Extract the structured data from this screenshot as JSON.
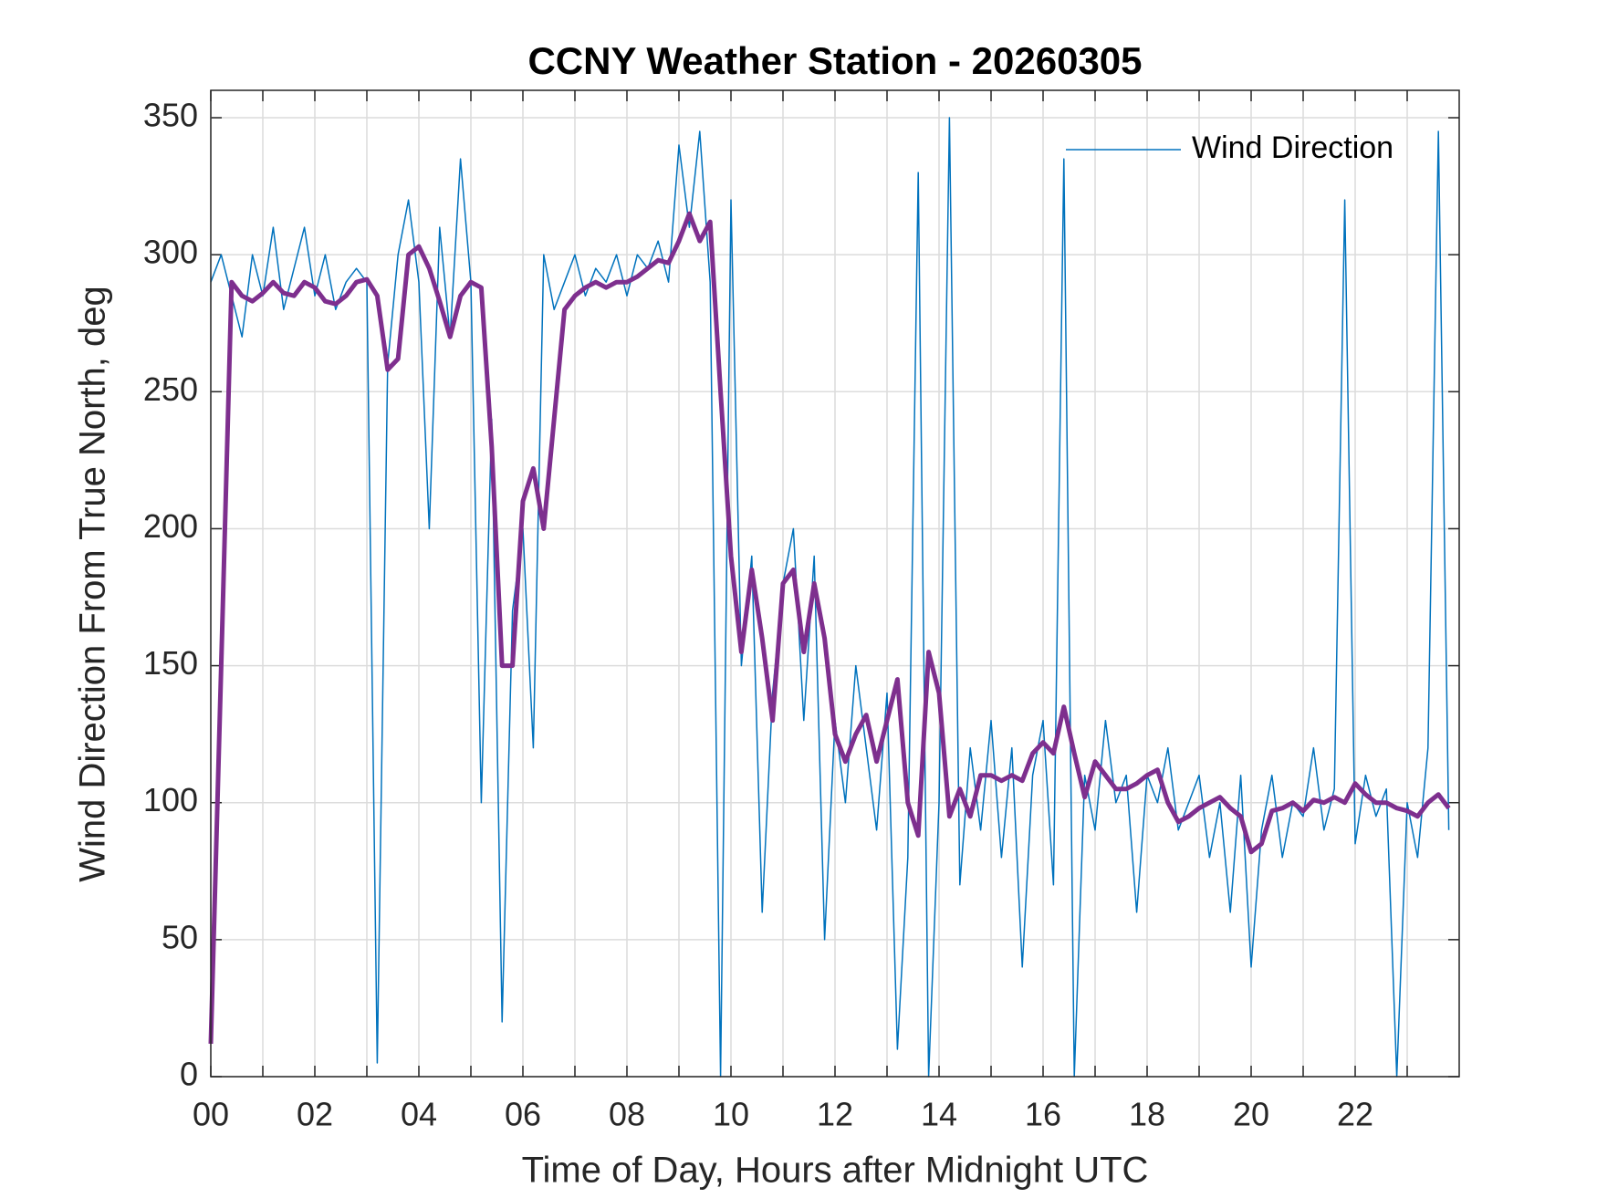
{
  "chart_data": {
    "type": "line",
    "title": "CCNY Weather Station - 20260305",
    "xlabel": "Time of Day, Hours after Midnight UTC",
    "ylabel": "Wind Direction From True North, deg",
    "x": [
      0,
      0.2,
      0.4,
      0.6,
      0.8,
      1,
      1.2,
      1.4,
      1.6,
      1.8,
      2,
      2.2,
      2.4,
      2.6,
      2.8,
      3,
      3.2,
      3.4,
      3.6,
      3.8,
      4,
      4.2,
      4.4,
      4.6,
      4.8,
      5,
      5.2,
      5.4,
      5.6,
      5.8,
      6,
      6.2,
      6.4,
      6.6,
      6.8,
      7,
      7.2,
      7.4,
      7.6,
      7.8,
      8,
      8.2,
      8.4,
      8.6,
      8.8,
      9,
      9.2,
      9.4,
      9.6,
      9.8,
      10,
      10.2,
      10.4,
      10.6,
      10.8,
      11,
      11.2,
      11.4,
      11.6,
      11.8,
      12,
      12.2,
      12.4,
      12.6,
      12.8,
      13,
      13.2,
      13.4,
      13.6,
      13.8,
      14,
      14.2,
      14.4,
      14.6,
      14.8,
      15,
      15.2,
      15.4,
      15.6,
      15.8,
      16,
      16.2,
      16.4,
      16.6,
      16.8,
      17,
      17.2,
      17.4,
      17.6,
      17.8,
      18,
      18.2,
      18.4,
      18.6,
      18.8,
      19,
      19.2,
      19.4,
      19.6,
      19.8,
      20,
      20.2,
      20.4,
      20.6,
      20.8,
      21,
      21.2,
      21.4,
      21.6,
      21.8,
      22,
      22.2,
      22.4,
      22.6,
      22.8,
      23,
      23.2,
      23.4,
      23.6,
      23.8
    ],
    "series": [
      {
        "name": "Wind Direction",
        "color": "#0072bd",
        "width": 1.5,
        "values": [
          290,
          300,
          285,
          270,
          300,
          285,
          310,
          280,
          295,
          310,
          285,
          300,
          280,
          290,
          295,
          290,
          5,
          260,
          300,
          320,
          290,
          200,
          310,
          270,
          335,
          290,
          100,
          240,
          20,
          170,
          200,
          120,
          300,
          280,
          290,
          300,
          285,
          295,
          290,
          300,
          285,
          300,
          295,
          305,
          290,
          340,
          310,
          345,
          290,
          0,
          320,
          150,
          190,
          60,
          140,
          180,
          200,
          130,
          190,
          50,
          130,
          100,
          150,
          120,
          90,
          140,
          10,
          80,
          330,
          0,
          100,
          350,
          70,
          120,
          90,
          130,
          80,
          120,
          40,
          110,
          130,
          70,
          335,
          0,
          110,
          90,
          130,
          100,
          110,
          60,
          110,
          100,
          120,
          90,
          100,
          110,
          80,
          100,
          60,
          110,
          40,
          90,
          110,
          80,
          100,
          95,
          120,
          90,
          105,
          320,
          85,
          110,
          95,
          105,
          0,
          100,
          80,
          120,
          345,
          90
        ]
      },
      {
        "color": "#7e2f8e",
        "width": 5,
        "values": [
          12,
          150,
          290,
          285,
          283,
          286,
          290,
          286,
          285,
          290,
          288,
          283,
          282,
          285,
          290,
          291,
          285,
          258,
          262,
          300,
          303,
          295,
          283,
          270,
          285,
          290,
          288,
          230,
          150,
          150,
          210,
          222,
          200,
          240,
          280,
          285,
          288,
          290,
          288,
          290,
          290,
          292,
          295,
          298,
          297,
          305,
          315,
          305,
          312,
          250,
          190,
          155,
          185,
          160,
          130,
          180,
          185,
          155,
          180,
          160,
          125,
          115,
          125,
          132,
          115,
          130,
          145,
          100,
          88,
          155,
          140,
          95,
          105,
          95,
          110,
          110,
          108,
          110,
          108,
          118,
          122,
          118,
          135,
          118,
          102,
          115,
          110,
          105,
          105,
          107,
          110,
          112,
          100,
          93,
          95,
          98,
          100,
          102,
          98,
          95,
          82,
          85,
          97,
          98,
          100,
          97,
          101,
          100,
          102,
          100,
          107,
          103,
          100,
          100,
          98,
          97,
          95,
          100,
          103,
          98
        ]
      }
    ],
    "xlim": [
      0,
      24
    ],
    "xticks": [
      {
        "value": 0,
        "label": "00"
      },
      {
        "value": 2,
        "label": "02"
      },
      {
        "value": 4,
        "label": "04"
      },
      {
        "value": 6,
        "label": "06"
      },
      {
        "value": 8,
        "label": "08"
      },
      {
        "value": 10,
        "label": "10"
      },
      {
        "value": 12,
        "label": "12"
      },
      {
        "value": 14,
        "label": "14"
      },
      {
        "value": 16,
        "label": "16"
      },
      {
        "value": 18,
        "label": "18"
      },
      {
        "value": 20,
        "label": "20"
      },
      {
        "value": 22,
        "label": "22"
      }
    ],
    "xminor": [
      1,
      3,
      5,
      7,
      9,
      11,
      13,
      15,
      17,
      19,
      21,
      23
    ],
    "ylim": [
      0,
      360
    ],
    "yticks": [
      0,
      50,
      100,
      150,
      200,
      250,
      300,
      350
    ],
    "grid": true,
    "legend": "northeast"
  }
}
